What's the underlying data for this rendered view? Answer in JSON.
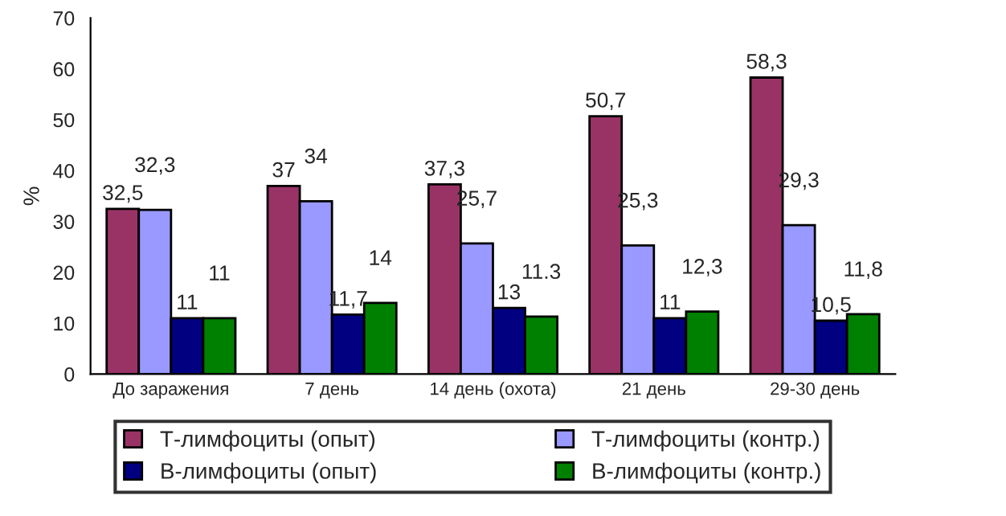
{
  "chart_data": {
    "type": "bar",
    "ylabel": "%",
    "categories": [
      "До заражения",
      "7 день",
      "14 день (охота)",
      "21 день",
      "29-30 день"
    ],
    "series": [
      {
        "name": "Т-лимфоциты (опыт)",
        "color": "#993366",
        "values": [
          32.5,
          37,
          37.3,
          50.7,
          58.3
        ],
        "value_labels": [
          "32,5",
          "37",
          "37,3",
          "50,7",
          "58,3"
        ]
      },
      {
        "name": "Т-лимфоциты (контр.)",
        "color": "#9999ff",
        "values": [
          32.3,
          34,
          25.7,
          25.3,
          29.3
        ],
        "value_labels": [
          "32,3",
          "34",
          "25,7",
          "25,3",
          "29,3"
        ]
      },
      {
        "name": "В-лимфоциты (опыт)",
        "color": "#000080",
        "values": [
          11,
          11.7,
          13,
          11,
          10.5
        ],
        "value_labels": [
          "11",
          "11,7",
          "13",
          "11",
          "10,5"
        ]
      },
      {
        "name": "В-лимфоциты (контр.)",
        "color": "#008000",
        "values": [
          11,
          14,
          11.3,
          12.3,
          11.8
        ],
        "value_labels": [
          "11",
          "14",
          "11.3",
          "12,3",
          "11,8"
        ]
      }
    ],
    "ylim": [
      0,
      70
    ],
    "yticks": [
      0,
      10,
      20,
      30,
      40,
      50,
      60,
      70
    ],
    "grid": false,
    "legend": "bottom"
  }
}
